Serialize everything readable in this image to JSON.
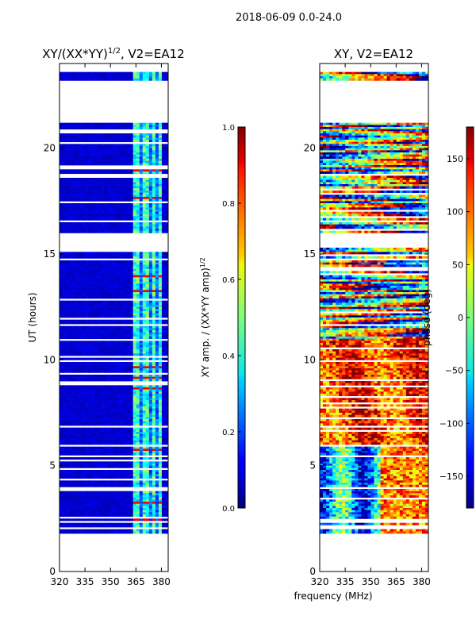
{
  "figure": {
    "suptitle": "2018-06-09 0.0-24.0",
    "shared_xlabel": "frequency (MHz)"
  },
  "colormap": "jet",
  "chart_data": [
    {
      "type": "heatmap",
      "title": "XY/(XX*YY)",
      "title_superscript": "1/2",
      "title_suffix": ", V2=EA12",
      "ylabel": "UT (hours)",
      "xlim": [
        320,
        384
      ],
      "ylim": [
        0,
        24
      ],
      "xticks": [
        320,
        335,
        350,
        365,
        380
      ],
      "yticks": [
        0,
        5,
        10,
        15,
        20
      ],
      "colorbar": {
        "label": "XY amp. / (XX*YY amp)",
        "label_superscript": "1/2",
        "range": [
          0.0,
          1.0
        ],
        "ticks": [
          0.0,
          0.2,
          0.4,
          0.6,
          0.8,
          1.0
        ]
      }
    },
    {
      "type": "heatmap",
      "title": "XY, V2=EA12",
      "ylabel": "",
      "xlim": [
        320,
        384
      ],
      "ylim": [
        0,
        24
      ],
      "xticks": [
        320,
        335,
        350,
        365,
        380
      ],
      "yticks": [
        0,
        5,
        10,
        15,
        20
      ],
      "colorbar": {
        "label": "phase (deg)",
        "range": [
          -180,
          180
        ],
        "ticks": [
          -150,
          -100,
          -50,
          0,
          50,
          100,
          150
        ]
      }
    }
  ]
}
